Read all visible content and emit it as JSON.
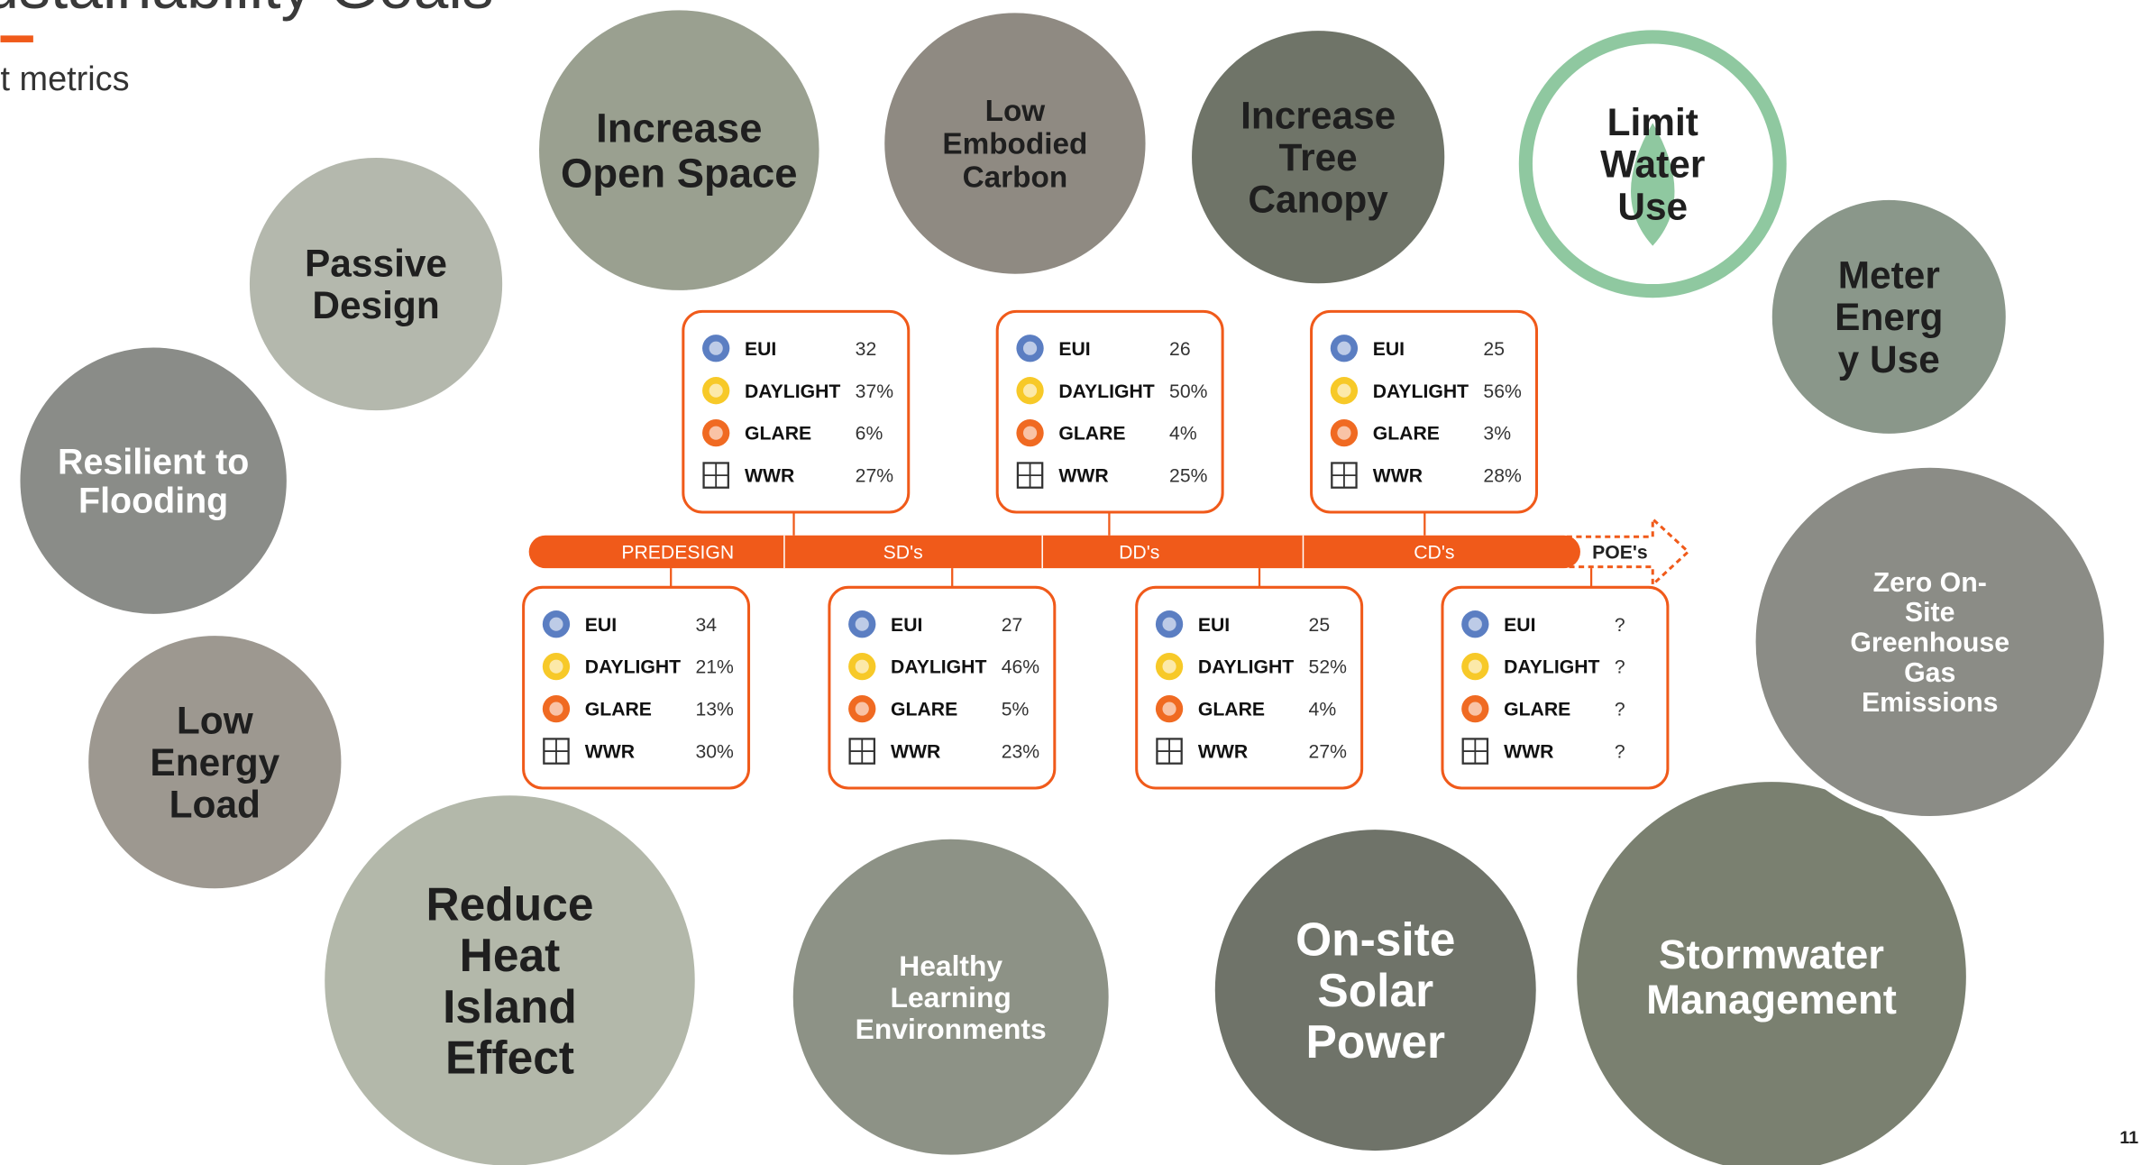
{
  "header": {
    "title": "ustainability Goals",
    "subtitle": "t metrics"
  },
  "goals": [
    {
      "lines": [
        "Increase",
        "Open Space"
      ]
    },
    {
      "lines": [
        "Low",
        "Embodied",
        "Carbon"
      ]
    },
    {
      "lines": [
        "Increase",
        "Tree",
        "Canopy"
      ]
    },
    {
      "lines": [
        "Limit",
        "Water",
        "Use"
      ]
    },
    {
      "lines": [
        "Meter",
        "Energ",
        "y Use"
      ]
    },
    {
      "lines": [
        "Passive",
        "Design"
      ]
    },
    {
      "lines": [
        "Resilient to",
        "Flooding"
      ]
    },
    {
      "lines": [
        "Low",
        "Energy",
        "Load"
      ]
    },
    {
      "lines": [
        "Reduce",
        "Heat",
        "Island",
        "Effect"
      ]
    },
    {
      "lines": [
        "Healthy",
        "Learning",
        "Environments"
      ]
    },
    {
      "lines": [
        "On-site",
        "Solar",
        "Power"
      ]
    },
    {
      "lines": [
        "Stormwater",
        "Management"
      ]
    },
    {
      "lines": [
        "Zero On-",
        "Site",
        "Greenhouse",
        "Gas",
        "Emissions"
      ]
    }
  ],
  "timeline": {
    "phases": [
      "PREDESIGN",
      "SD's",
      "DD's",
      "CD's",
      "POE's"
    ]
  },
  "cards": [
    {
      "rows": [
        {
          "label": "EUI",
          "value": "32"
        },
        {
          "label": "DAYLIGHT",
          "value": "37%"
        },
        {
          "label": "GLARE",
          "value": "6%"
        },
        {
          "label": "WWR",
          "value": "27%"
        }
      ]
    },
    {
      "rows": [
        {
          "label": "EUI",
          "value": "26"
        },
        {
          "label": "DAYLIGHT",
          "value": "50%"
        },
        {
          "label": "GLARE",
          "value": "4%"
        },
        {
          "label": "WWR",
          "value": "25%"
        }
      ]
    },
    {
      "rows": [
        {
          "label": "EUI",
          "value": "25"
        },
        {
          "label": "DAYLIGHT",
          "value": "56%"
        },
        {
          "label": "GLARE",
          "value": "3%"
        },
        {
          "label": "WWR",
          "value": "28%"
        }
      ]
    },
    {
      "rows": [
        {
          "label": "EUI",
          "value": "34"
        },
        {
          "label": "DAYLIGHT",
          "value": "21%"
        },
        {
          "label": "GLARE",
          "value": "13%"
        },
        {
          "label": "WWR",
          "value": "30%"
        }
      ]
    },
    {
      "rows": [
        {
          "label": "EUI",
          "value": "27"
        },
        {
          "label": "DAYLIGHT",
          "value": "46%"
        },
        {
          "label": "GLARE",
          "value": "5%"
        },
        {
          "label": "WWR",
          "value": "23%"
        }
      ]
    },
    {
      "rows": [
        {
          "label": "EUI",
          "value": "25"
        },
        {
          "label": "DAYLIGHT",
          "value": "52%"
        },
        {
          "label": "GLARE",
          "value": "4%"
        },
        {
          "label": "WWR",
          "value": "27%"
        }
      ]
    },
    {
      "rows": [
        {
          "label": "EUI",
          "value": "?"
        },
        {
          "label": "DAYLIGHT",
          "value": "?"
        },
        {
          "label": "GLARE",
          "value": "?"
        },
        {
          "label": "WWR",
          "value": "?"
        }
      ]
    }
  ],
  "page_number": "11"
}
